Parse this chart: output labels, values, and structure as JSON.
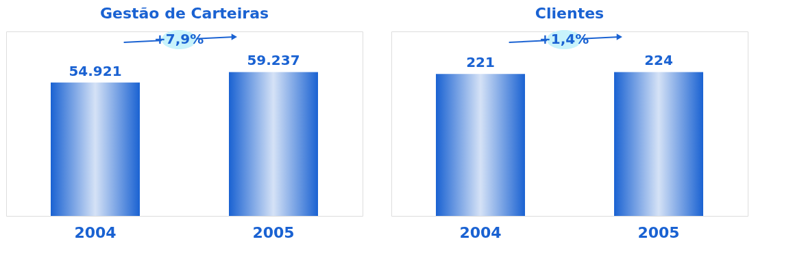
{
  "chart_data": [
    {
      "type": "bar",
      "title": "Gestão de Carteiras",
      "categories": [
        "2004",
        "2005"
      ],
      "values": [
        54921,
        59237
      ],
      "value_labels": [
        "54.921",
        "59.237"
      ],
      "color": "#1a62d2",
      "annotations": [
        "+7,9%"
      ]
    },
    {
      "type": "bar",
      "title": "Clientes",
      "categories": [
        "2004",
        "2005"
      ],
      "values": [
        221,
        224
      ],
      "data_labels": true,
      "color": "#1a62d2",
      "annotations": [
        "+1,4%"
      ]
    }
  ]
}
